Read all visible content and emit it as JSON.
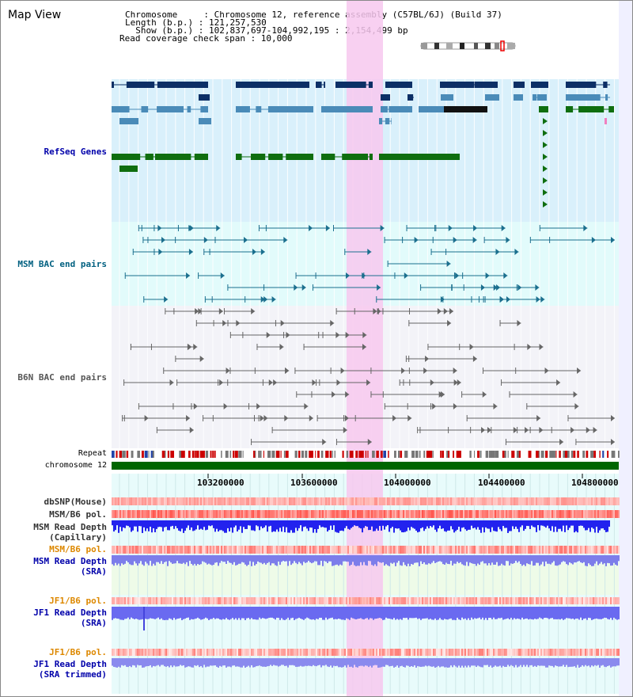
{
  "title": "Map View",
  "info": {
    "chromosome_line": "Chromosome     : Chromosome 12, reference assembly (C57BL/6J) (Build 37)",
    "length_line": "Length (b.p.) : 121,257,530",
    "show_line": "  Show (b.p.) : 102,837,697-104,992,195 : 2,154,499 bp",
    "coverage_line": "Read coverage check span : 10,000"
  },
  "tracks": {
    "refseq": "RefSeq Genes",
    "msm_bac": "MSM BAC end pairs",
    "b6n_bac": "B6N BAC end pairs",
    "repeat": "Repeat",
    "chromosome": "chromosome 12",
    "dbsnp": "dbSNP(Mouse)",
    "msm_b6_pol_1": "MSM/B6 pol.",
    "msm_read_depth_cap_1": "MSM Read Depth",
    "msm_read_depth_cap_2": "(Capillary)",
    "msm_b6_pol_2": "MSM/B6 pol.",
    "msm_read_depth_sra_1": "MSM Read Depth",
    "msm_read_depth_sra_2": "(SRA)",
    "jf1_b6_pol_1": "JF1/B6 pol.",
    "jf1_read_depth_sra_1": "JF1 Read Depth",
    "jf1_read_depth_sra_2": "(SRA)",
    "jf1_b6_pol_2": "JF1/B6 pol.",
    "jf1_read_depth_trim_1": "JF1 Read Depth",
    "jf1_read_depth_trim_2": "(SRA trimmed)"
  },
  "axis_ticks": [
    "103200000",
    "103600000",
    "104000000",
    "104400000",
    "104800000"
  ],
  "colors": {
    "highlight": "#f7c8ef",
    "refseq_bg": "#d9f0fb",
    "msm_bg": "#e2fbfb",
    "b6n_bg": "#f3f3f8",
    "navy": "#0c2f66",
    "steel": "#4a8bb8",
    "green": "#0f6e0f",
    "teal": "#1b6f8e",
    "gray": "#666666",
    "msm_label": "#006080",
    "b6n_label": "#555555",
    "blue_label": "#0000aa",
    "orange_label": "#dd8800"
  }
}
